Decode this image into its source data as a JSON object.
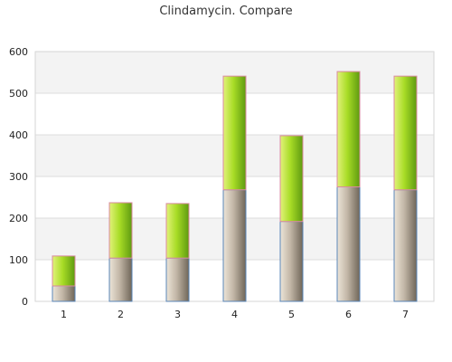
{
  "chart_data": {
    "type": "bar",
    "stacked": true,
    "title": "Clindamycin. Compare",
    "xlabel": "",
    "ylabel": "",
    "categories": [
      "1",
      "2",
      "3",
      "4",
      "5",
      "6",
      "7"
    ],
    "ylim": [
      0,
      600
    ],
    "yticks": [
      0,
      100,
      200,
      300,
      400,
      500,
      600
    ],
    "grid": true,
    "legend": "none",
    "series": [
      {
        "values": [
          37,
          104,
          104,
          268,
          192,
          275,
          268
        ],
        "color": "#a89c8c"
      },
      {
        "values": [
          72,
          133,
          131,
          273,
          206,
          277,
          273
        ],
        "color": "#9acd32"
      }
    ]
  }
}
